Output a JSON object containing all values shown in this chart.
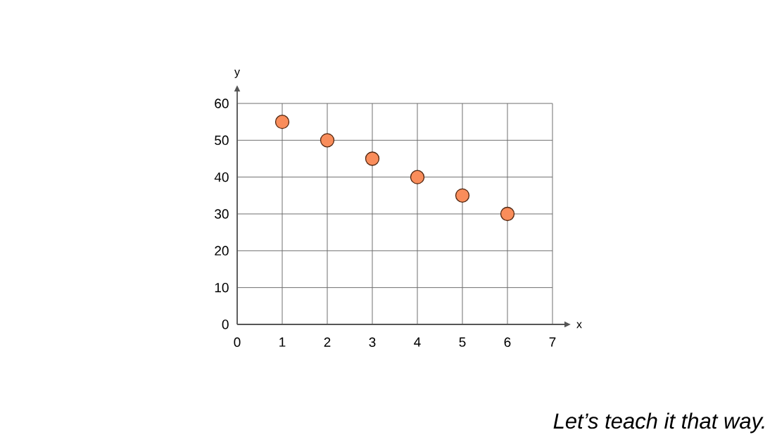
{
  "chart_data": {
    "type": "scatter",
    "xlabel": "x",
    "ylabel": "y",
    "x": [
      1,
      2,
      3,
      4,
      5,
      6
    ],
    "series": [
      {
        "color": "#f98d5b",
        "values": [
          55,
          50,
          45,
          40,
          35,
          30
        ]
      }
    ],
    "xlim": [
      0,
      7
    ],
    "ylim": [
      0,
      60
    ],
    "xticks": [
      0,
      1,
      2,
      3,
      4,
      5,
      6,
      7
    ],
    "yticks": [
      0,
      10,
      20,
      30,
      40,
      50,
      60
    ],
    "grid": true,
    "marker": "circle",
    "annotations": [
      "Let’s teach it that way."
    ]
  }
}
